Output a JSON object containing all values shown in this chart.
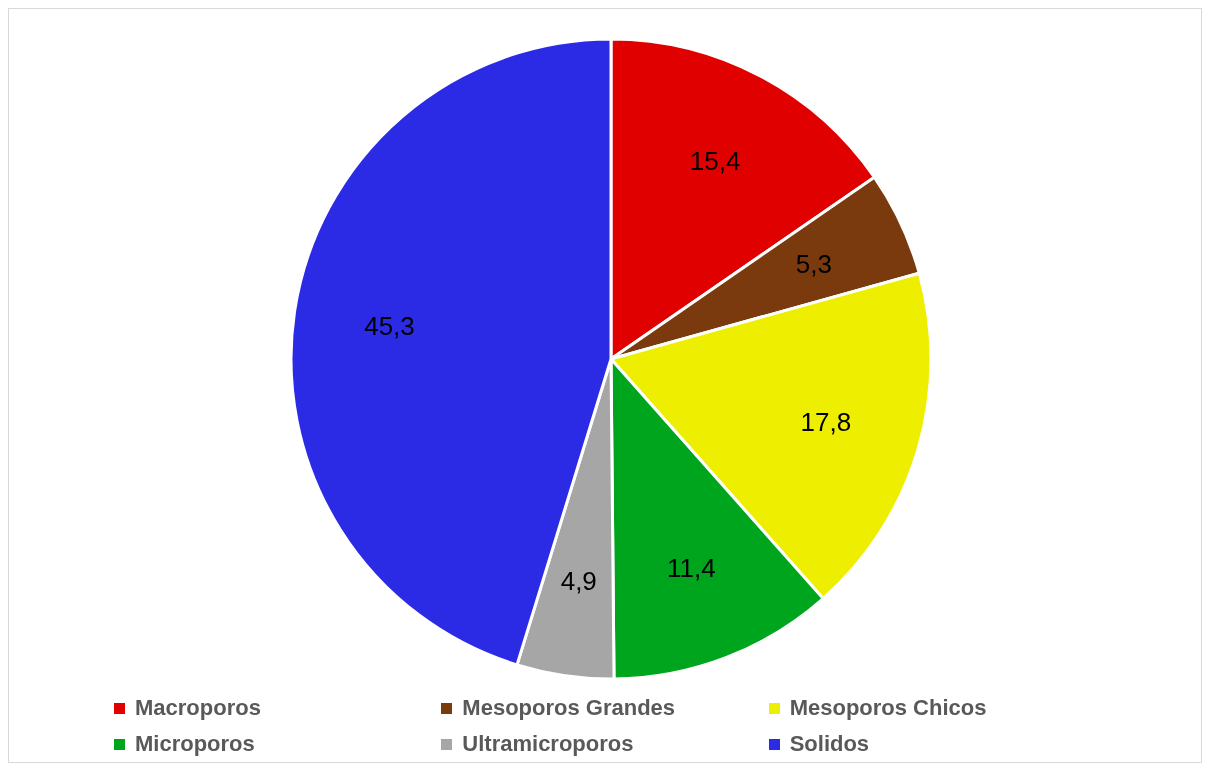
{
  "chart_data": {
    "type": "pie",
    "categories": [
      "Macroporos",
      "Mesoporos Grandes",
      "Mesoporos Chicos",
      "Microporos",
      "Ultramicroporos",
      "Solidos"
    ],
    "values": [
      15.4,
      5.3,
      17.8,
      11.4,
      4.9,
      45.3
    ],
    "value_labels": [
      "15,4",
      "5,3",
      "17,8",
      "11,4",
      "4,9",
      "45,3"
    ],
    "colors": [
      "#e00000",
      "#7a3a0e",
      "#eeee00",
      "#00a51e",
      "#a6a6a6",
      "#2b2be6"
    ],
    "legend": "bottom"
  }
}
